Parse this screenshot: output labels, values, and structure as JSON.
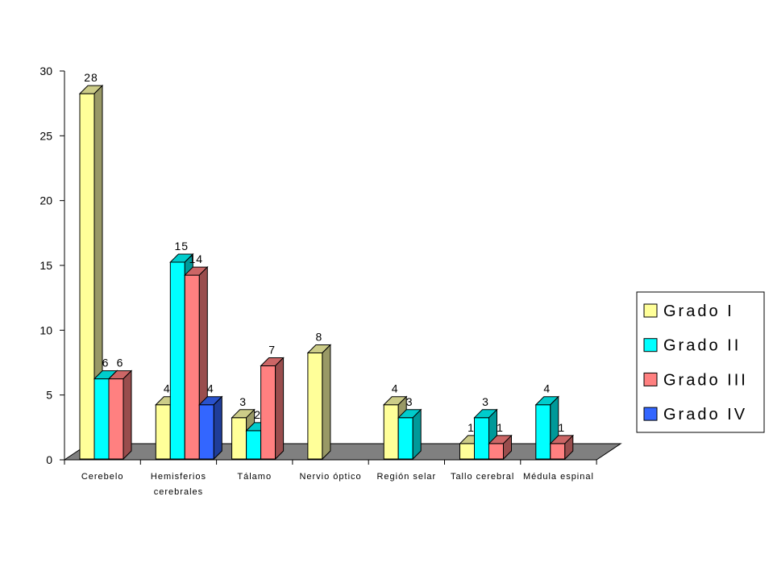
{
  "chart_data": {
    "type": "bar",
    "categories": [
      [
        "Cerebelo"
      ],
      [
        "Hemisferios",
        "cerebrales"
      ],
      [
        "Tálamo"
      ],
      [
        "Nervio óptico"
      ],
      [
        "Región selar"
      ],
      [
        "Tallo cerebral"
      ],
      [
        "Médula espinal"
      ]
    ],
    "series": [
      {
        "name": "Grado I",
        "color": "#FFFF99",
        "side": "#999966",
        "top": "#CCCC88",
        "values": [
          28,
          4,
          3,
          8,
          4,
          1,
          null
        ]
      },
      {
        "name": "Grado II",
        "color": "#00FFFF",
        "side": "#009999",
        "top": "#00CCCC",
        "values": [
          6,
          15,
          2,
          null,
          3,
          3,
          4
        ]
      },
      {
        "name": "Grado III",
        "color": "#FF8080",
        "side": "#994D4D",
        "top": "#CC6666",
        "values": [
          6,
          14,
          7,
          null,
          null,
          1,
          1
        ]
      },
      {
        "name": "Grado IV",
        "color": "#3366FF",
        "side": "#1F3D99",
        "top": "#2952CC",
        "values": [
          null,
          4,
          null,
          null,
          null,
          null,
          null
        ]
      }
    ],
    "ylim": [
      0,
      30
    ],
    "yticks": [
      0,
      5,
      10,
      15,
      20,
      25,
      30
    ],
    "floor_color": "#808080",
    "legend_position": "right",
    "title": "",
    "xlabel": "",
    "ylabel": ""
  }
}
